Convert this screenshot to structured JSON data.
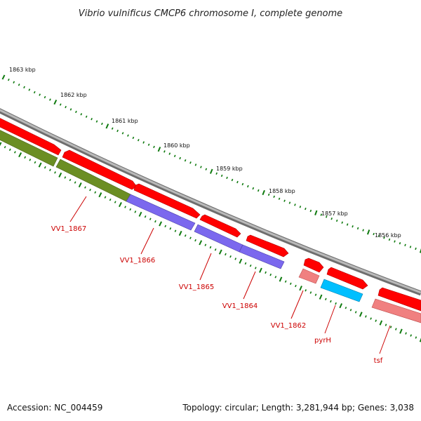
{
  "title": "Vibrio vulnificus CMCP6 chromosome I, complete genome",
  "colors": {
    "backbone": "#8f8f8f",
    "tick_small": "#0f7a0f",
    "tick_large": "#0f7a0f",
    "cds_red": "#ff0000",
    "cds_light_red": "#f08080",
    "cds_green": "#6b8e23",
    "cds_purple": "#7b68ee",
    "cds_blue": "#00bfff",
    "label": "#cc0000"
  },
  "kbp_ticks": [
    "1863 kbp",
    "1862 kbp",
    "1861 kbp",
    "1860 kbp",
    "1859 kbp",
    "1858 kbp",
    "1857 kbp",
    "1856 kbp"
  ],
  "genes": [
    {
      "label": "VV1_1867",
      "feature_color": "cds_green"
    },
    {
      "label": "VV1_1866",
      "feature_color": "cds_purple"
    },
    {
      "label": "VV1_1865",
      "feature_color": "cds_purple"
    },
    {
      "label": "VV1_1864",
      "feature_color": "cds_purple"
    },
    {
      "label": "VV1_1862",
      "feature_color": "cds_light_red"
    },
    {
      "label": "pyrH",
      "feature_color": "cds_blue"
    },
    {
      "label": "tsf",
      "feature_color": "cds_light_red"
    }
  ],
  "footer": {
    "accession": "Accession: NC_004459",
    "summary": "Topology: circular; Length: 3,281,944 bp; Genes: 3,038"
  }
}
